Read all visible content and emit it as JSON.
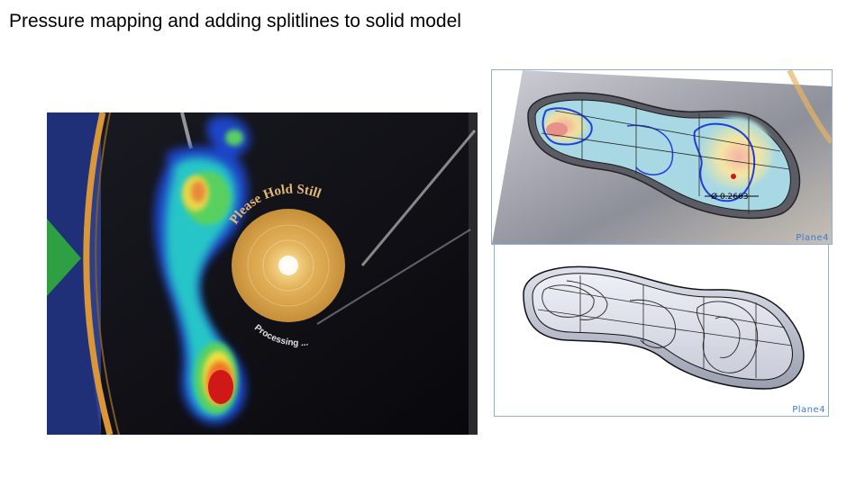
{
  "slide": {
    "title": "Pressure mapping and adding splitlines to solid model"
  },
  "pressure_display": {
    "prompt_text": "Please Hold Still",
    "status_text": "Processing ..."
  },
  "cad_views": {
    "top": {
      "plane_label": "Plane4",
      "dimension_text": "Ø 0.2663"
    },
    "bottom": {
      "plane_label": "Plane4"
    }
  }
}
